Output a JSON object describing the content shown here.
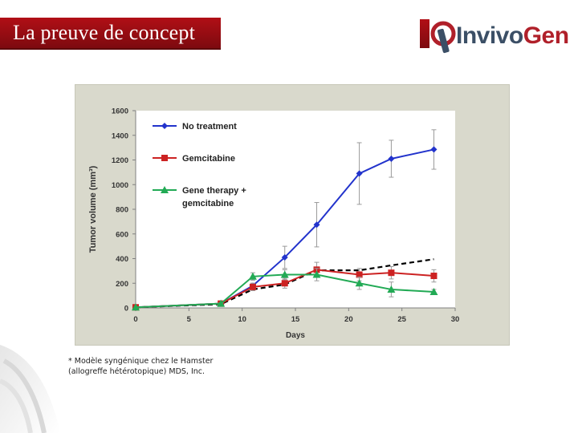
{
  "slide": {
    "title": "La preuve de concept",
    "footnote_line1": "* Modèle syngénique chez le Hamster",
    "footnote_line2": "(allogreffe hétérotopique) MDS, Inc."
  },
  "logo": {
    "text_invivo": "Invivo",
    "text_gen": "Gen",
    "icon": "invivogen-logo-icon",
    "color_primary": "#3b4f66",
    "color_accent": "#b0202a"
  },
  "chart_data": {
    "type": "line",
    "xlabel": "Days",
    "ylabel": "Tumor volume (mm³)",
    "xlim": [
      0,
      30
    ],
    "ylim": [
      0,
      1600
    ],
    "xticks": [
      0,
      5,
      10,
      15,
      20,
      25,
      30
    ],
    "yticks": [
      0,
      200,
      400,
      600,
      800,
      1000,
      1200,
      1400,
      1600
    ],
    "grid": false,
    "legend_position": "top-left",
    "series": [
      {
        "name": "No treatment",
        "color": "#2233cc",
        "marker": "diamond",
        "x": [
          0,
          8,
          11,
          14,
          17,
          21,
          24,
          28
        ],
        "y": [
          5,
          35,
          180,
          410,
          675,
          1090,
          1210,
          1285
        ],
        "err": [
          0,
          5,
          20,
          90,
          180,
          250,
          150,
          160
        ]
      },
      {
        "name": "Gemcitabine",
        "color": "#cc2222",
        "marker": "square",
        "x": [
          0,
          8,
          11,
          14,
          17,
          21,
          24,
          28
        ],
        "y": [
          5,
          35,
          170,
          200,
          310,
          270,
          285,
          260
        ],
        "err": [
          0,
          5,
          30,
          40,
          60,
          50,
          50,
          50
        ]
      },
      {
        "name": "Gene therapy + gemcitabine",
        "color": "#22aa55",
        "marker": "triangle",
        "x": [
          0,
          8,
          11,
          14,
          17,
          21,
          24,
          28
        ],
        "y": [
          5,
          35,
          255,
          270,
          270,
          200,
          150,
          130
        ],
        "err": [
          0,
          5,
          30,
          40,
          50,
          50,
          60,
          20
        ]
      },
      {
        "color": "#000000",
        "style": "dashed",
        "x": [
          0,
          8,
          11,
          14,
          17,
          21,
          24,
          28
        ],
        "y": [
          5,
          30,
          150,
          190,
          305,
          305,
          345,
          395
        ]
      }
    ]
  }
}
